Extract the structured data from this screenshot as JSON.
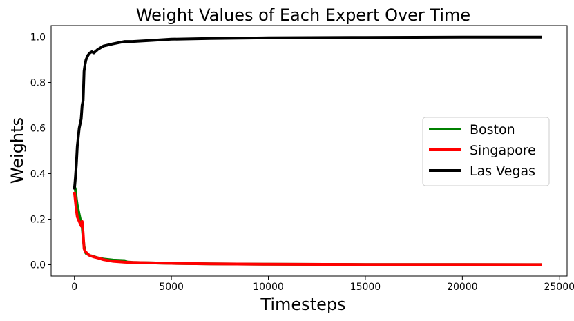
{
  "chart_data": {
    "type": "line",
    "title": "Weight Values of Each Expert Over Time",
    "xlabel": "Timesteps",
    "ylabel": "Weights",
    "xlim": [
      -1200,
      25400
    ],
    "ylim": [
      -0.05,
      1.05
    ],
    "xticks": [
      0,
      5000,
      10000,
      15000,
      20000,
      25000
    ],
    "xtick_labels": [
      "0",
      "5000",
      "10000",
      "15000",
      "20000",
      "25000"
    ],
    "yticks": [
      0.0,
      0.2,
      0.4,
      0.6,
      0.8,
      1.0
    ],
    "ytick_labels": [
      "0.0",
      "0.2",
      "0.4",
      "0.6",
      "0.8",
      "1.0"
    ],
    "grid": false,
    "legend_position": "center-right",
    "series": [
      {
        "name": "Boston",
        "color": "#008000",
        "x": [
          0,
          50,
          100,
          150,
          200,
          250,
          300,
          350,
          400,
          450,
          500,
          550,
          600,
          700,
          800,
          900,
          1000,
          1200,
          1500,
          2000,
          2600,
          2700,
          3000,
          4000,
          5000,
          7000,
          10000,
          15000,
          20000,
          24100
        ],
        "y": [
          0.345,
          0.33,
          0.29,
          0.26,
          0.24,
          0.22,
          0.2,
          0.19,
          0.17,
          0.12,
          0.08,
          0.06,
          0.05,
          0.045,
          0.04,
          0.038,
          0.035,
          0.03,
          0.025,
          0.02,
          0.018,
          0.012,
          0.01,
          0.008,
          0.006,
          0.004,
          0.002,
          0.001,
          0.0005,
          0.0002
        ]
      },
      {
        "name": "Singapore",
        "color": "#ff0000",
        "x": [
          0,
          50,
          100,
          150,
          200,
          250,
          300,
          350,
          400,
          450,
          500,
          550,
          600,
          700,
          800,
          900,
          1000,
          1200,
          1500,
          2000,
          2600,
          3000,
          4000,
          5000,
          7000,
          10000,
          15000,
          20000,
          24100
        ],
        "y": [
          0.32,
          0.28,
          0.24,
          0.21,
          0.2,
          0.19,
          0.18,
          0.17,
          0.19,
          0.14,
          0.07,
          0.06,
          0.055,
          0.045,
          0.04,
          0.037,
          0.034,
          0.03,
          0.022,
          0.015,
          0.011,
          0.01,
          0.008,
          0.006,
          0.004,
          0.002,
          0.001,
          0.0005,
          0.0002
        ]
      },
      {
        "name": "Las Vegas",
        "color": "#000000",
        "x": [
          0,
          50,
          100,
          150,
          200,
          250,
          300,
          350,
          400,
          450,
          500,
          550,
          600,
          700,
          800,
          900,
          1000,
          1200,
          1500,
          2000,
          2600,
          3000,
          4000,
          5000,
          7000,
          10000,
          15000,
          20000,
          24100
        ],
        "y": [
          0.33,
          0.38,
          0.44,
          0.52,
          0.56,
          0.6,
          0.62,
          0.64,
          0.7,
          0.72,
          0.85,
          0.88,
          0.9,
          0.92,
          0.93,
          0.935,
          0.93,
          0.945,
          0.96,
          0.97,
          0.98,
          0.98,
          0.985,
          0.99,
          0.993,
          0.996,
          0.998,
          0.999,
          0.9995
        ]
      }
    ]
  }
}
